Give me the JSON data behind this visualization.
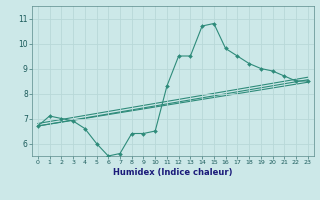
{
  "xlabel": "Humidex (Indice chaleur)",
  "ylabel": "",
  "x_ticks": [
    0,
    1,
    2,
    3,
    4,
    5,
    6,
    7,
    8,
    9,
    10,
    11,
    12,
    13,
    14,
    15,
    16,
    17,
    18,
    19,
    20,
    21,
    22,
    23
  ],
  "y_ticks": [
    6,
    7,
    8,
    9,
    10,
    11
  ],
  "ylim": [
    5.5,
    11.5
  ],
  "xlim": [
    -0.5,
    23.5
  ],
  "bg_color": "#cce8e8",
  "grid_color": "#b8d8d8",
  "line_color": "#2e8b7a",
  "series": {
    "main": {
      "x": [
        0,
        1,
        2,
        3,
        4,
        5,
        6,
        7,
        8,
        9,
        10,
        11,
        12,
        13,
        14,
        15,
        16,
        17,
        18,
        19,
        20,
        21,
        22,
        23
      ],
      "y": [
        6.7,
        7.1,
        7.0,
        6.9,
        6.6,
        6.0,
        5.5,
        5.6,
        6.4,
        6.4,
        6.5,
        8.3,
        9.5,
        9.5,
        10.7,
        10.8,
        9.8,
        9.5,
        9.2,
        9.0,
        8.9,
        8.7,
        8.5,
        8.5
      ]
    },
    "line1": {
      "x": [
        0,
        23
      ],
      "y": [
        6.7,
        8.45
      ]
    },
    "line2": {
      "x": [
        0,
        23
      ],
      "y": [
        6.7,
        8.55
      ]
    },
    "line3": {
      "x": [
        0,
        23
      ],
      "y": [
        6.8,
        8.65
      ]
    }
  }
}
